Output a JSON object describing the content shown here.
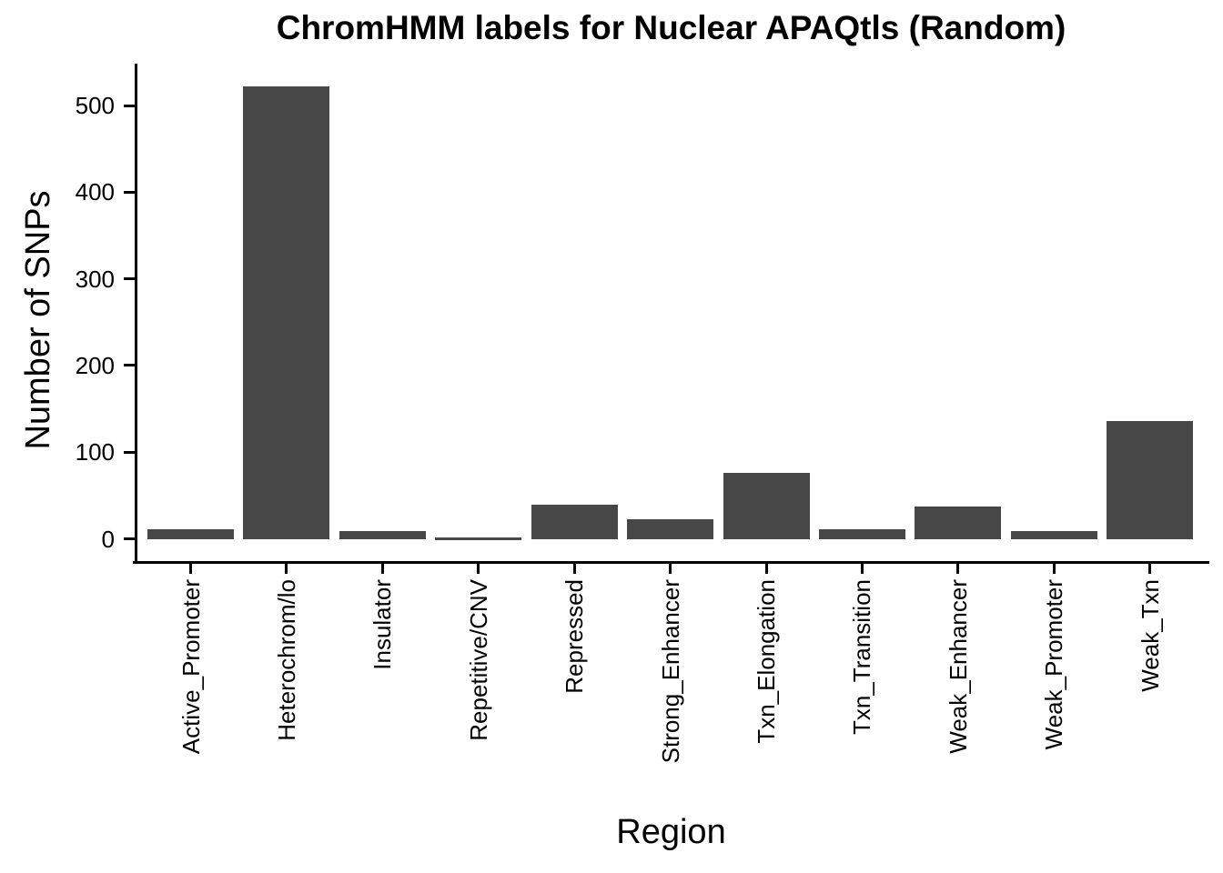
{
  "figure": {
    "title": "ChromHMM labels for Nuclear APAQtls (Random)",
    "xlabel": "Region",
    "ylabel": "Number of SNPs"
  },
  "chart_data": {
    "type": "bar",
    "title": "ChromHMM labels for Nuclear APAQtls (Random)",
    "xlabel": "Region",
    "ylabel": "Number of SNPs",
    "categories": [
      "Active_Promoter",
      "Heterochrom/lo",
      "Insulator",
      "Repetitive/CNV",
      "Repressed",
      "Strong_Enhancer",
      "Txn_Elongation",
      "Txn_Transition",
      "Weak_Enhancer",
      "Weak_Promoter",
      "Weak_Txn"
    ],
    "values": [
      11,
      522,
      9,
      2,
      39,
      23,
      76,
      11,
      37,
      9,
      136
    ],
    "yticks": [
      0,
      100,
      200,
      300,
      400,
      500
    ],
    "ylim": [
      0,
      548
    ],
    "grid": false,
    "legend_position": "none",
    "bar_color": "#474747",
    "axis_color": "#000000",
    "background_color": "#ffffff"
  }
}
